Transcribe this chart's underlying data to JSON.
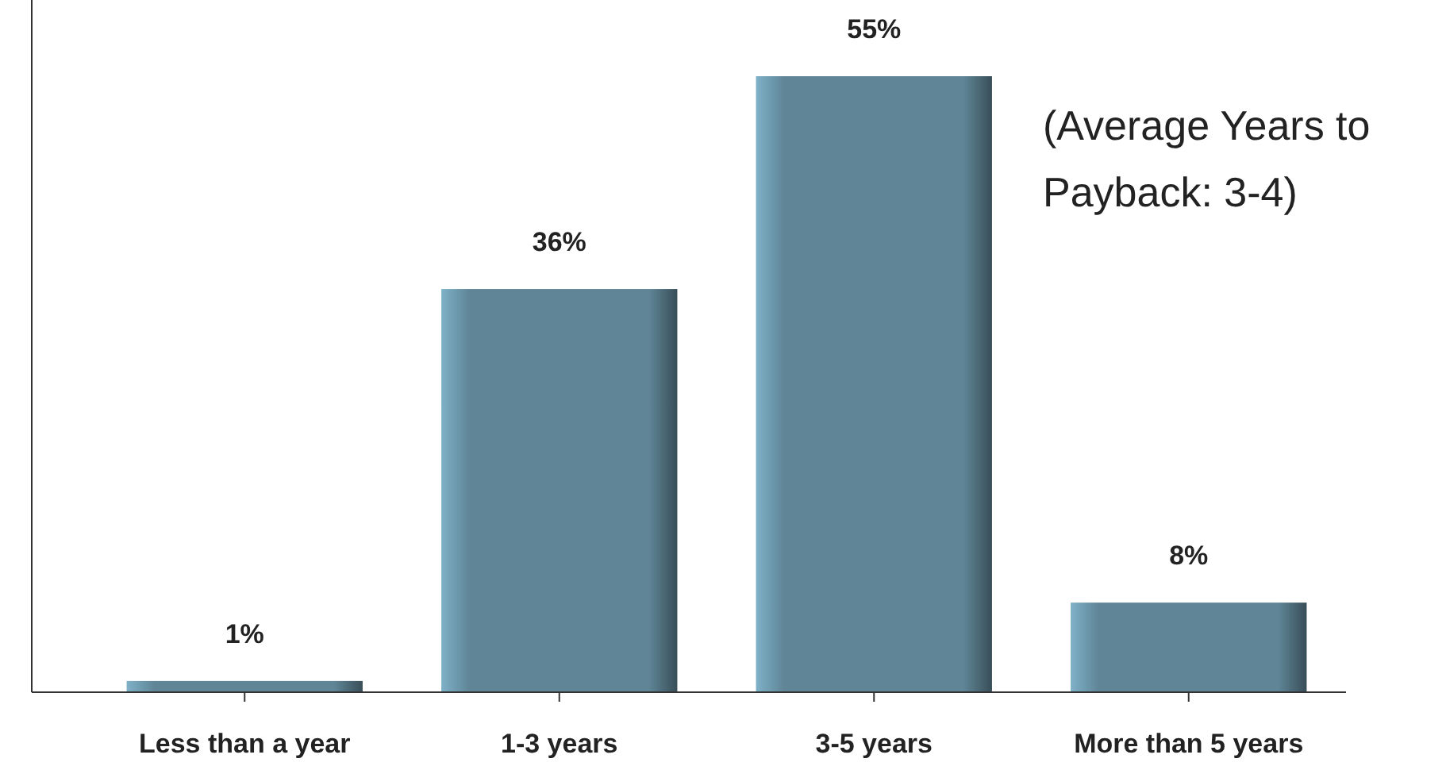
{
  "chart_data": {
    "type": "bar",
    "categories": [
      "Less than a year",
      "1-3 years",
      "3-5 years",
      "More than 5 years"
    ],
    "values": [
      1,
      36,
      55,
      8
    ],
    "value_labels": [
      "1%",
      "36%",
      "55%",
      "8%"
    ],
    "color": "#5f8596",
    "annotations": [
      "(Average Years to Payback: 3-4)"
    ]
  }
}
